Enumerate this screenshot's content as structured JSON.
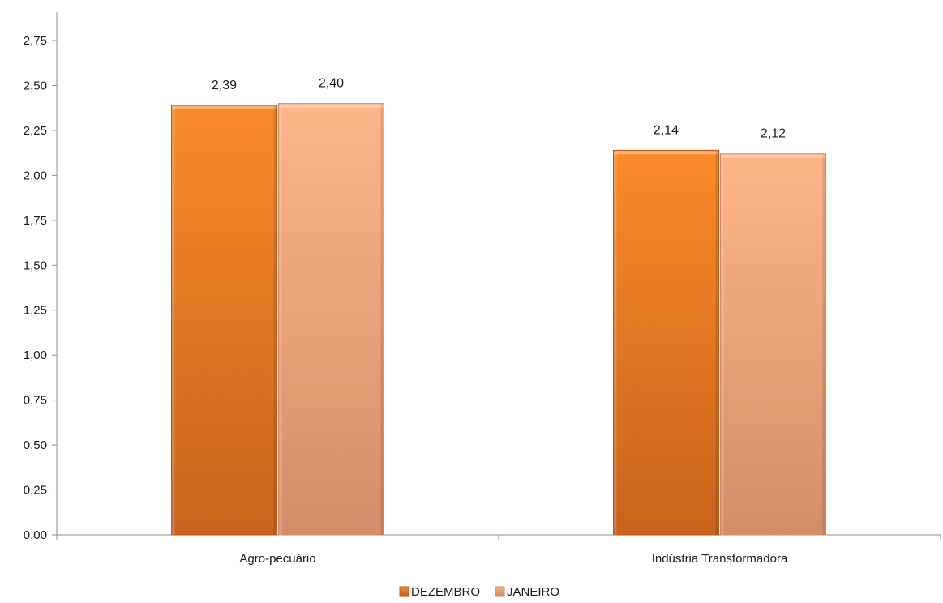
{
  "chart_data": {
    "type": "bar",
    "categories": [
      "Agro-pecuário",
      "Indústria Transformadora"
    ],
    "series": [
      {
        "name": "DEZEMBRO",
        "values": [
          2.39,
          2.14
        ],
        "labels": [
          "2,39",
          "2,14"
        ],
        "color": "#E8761F"
      },
      {
        "name": "JANEIRO",
        "values": [
          2.4,
          2.12
        ],
        "labels": [
          "2,40",
          "2,12"
        ],
        "color": "#F2A77A"
      }
    ],
    "ylim": [
      0,
      2.75
    ],
    "yticks": [
      {
        "value": 0,
        "label": "0,00"
      },
      {
        "value": 0.25,
        "label": "0,25"
      },
      {
        "value": 0.5,
        "label": "0,50"
      },
      {
        "value": 0.75,
        "label": "0,75"
      },
      {
        "value": 1.0,
        "label": "1,00"
      },
      {
        "value": 1.25,
        "label": "1,25"
      },
      {
        "value": 1.5,
        "label": "1,50"
      },
      {
        "value": 1.75,
        "label": "1,75"
      },
      {
        "value": 2.0,
        "label": "2,00"
      },
      {
        "value": 2.25,
        "label": "2,25"
      },
      {
        "value": 2.5,
        "label": "2,50"
      },
      {
        "value": 2.75,
        "label": "2,75"
      }
    ],
    "grid": false,
    "legend": "bottom-center",
    "title": "",
    "xlabel": "",
    "ylabel": ""
  }
}
